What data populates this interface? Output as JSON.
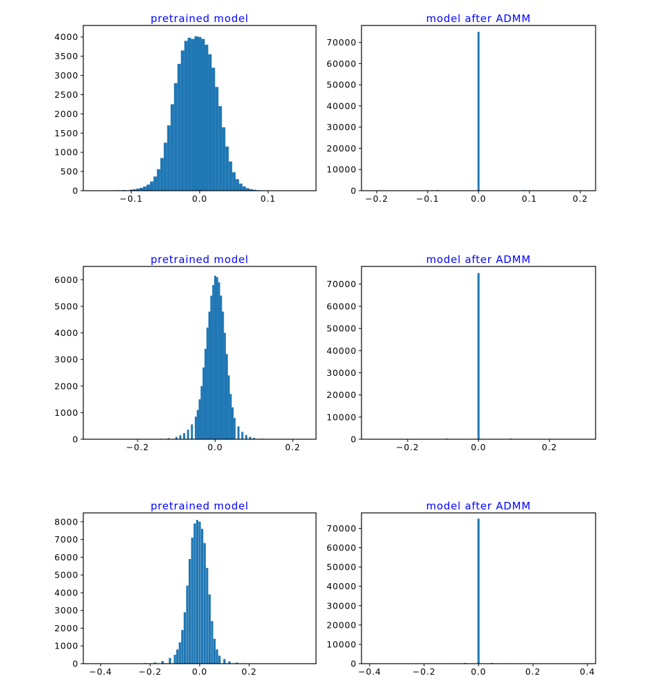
{
  "figure": {
    "title_color": "#0000ff",
    "bar_color": "#1f77b4"
  },
  "chart_data": [
    {
      "type": "bar",
      "title": "pretrained model",
      "xlabel": "",
      "ylabel": "",
      "xlim": [
        -0.17,
        0.17
      ],
      "ylim": [
        0,
        4300
      ],
      "xticks": [
        -0.1,
        0.0,
        0.1
      ],
      "xtick_labels": [
        "−0.1",
        "0.0",
        "0.1"
      ],
      "yticks": [
        0,
        500,
        1000,
        1500,
        2000,
        2500,
        3000,
        3500,
        4000
      ],
      "ytick_labels": [
        "0",
        "500",
        "1000",
        "1500",
        "2000",
        "2500",
        "3000",
        "3500",
        "4000"
      ],
      "bins": {
        "x": [
          -0.15,
          -0.14,
          -0.13,
          -0.12,
          -0.11,
          -0.1,
          -0.095,
          -0.09,
          -0.085,
          -0.08,
          -0.075,
          -0.07,
          -0.065,
          -0.06,
          -0.055,
          -0.05,
          -0.045,
          -0.04,
          -0.035,
          -0.03,
          -0.025,
          -0.02,
          -0.015,
          -0.01,
          -0.005,
          0.0,
          0.005,
          0.01,
          0.015,
          0.02,
          0.025,
          0.03,
          0.035,
          0.04,
          0.045,
          0.05,
          0.055,
          0.06,
          0.065,
          0.07,
          0.075,
          0.08,
          0.085,
          0.09,
          0.1,
          0.11,
          0.12
        ],
        "values": [
          3,
          5,
          8,
          12,
          18,
          28,
          38,
          55,
          75,
          110,
          160,
          240,
          370,
          560,
          850,
          1250,
          1700,
          2250,
          2800,
          3300,
          3650,
          3900,
          3980,
          3950,
          4020,
          4000,
          3950,
          3800,
          3550,
          3200,
          2700,
          2200,
          1650,
          1150,
          760,
          480,
          300,
          185,
          110,
          65,
          40,
          25,
          15,
          10,
          5,
          3,
          2
        ]
      },
      "bin_width": 0.005
    },
    {
      "type": "bar",
      "title": "model after ADMM",
      "xlabel": "",
      "ylabel": "",
      "xlim": [
        -0.23,
        0.23
      ],
      "ylim": [
        0,
        78000
      ],
      "xticks": [
        -0.2,
        -0.1,
        0.0,
        0.1,
        0.2
      ],
      "xtick_labels": [
        "−0.2",
        "−0.1",
        "0.0",
        "0.1",
        "0.2"
      ],
      "yticks": [
        0,
        10000,
        20000,
        30000,
        40000,
        50000,
        60000,
        70000
      ],
      "ytick_labels": [
        "0",
        "10000",
        "20000",
        "30000",
        "40000",
        "50000",
        "60000",
        "70000"
      ],
      "bins": {
        "x": [
          -0.08,
          0.0,
          0.09
        ],
        "values": [
          300,
          75000,
          300
        ]
      },
      "bin_width": 0.004
    },
    {
      "type": "bar",
      "title": "pretrained model",
      "xlabel": "",
      "ylabel": "",
      "xlim": [
        -0.34,
        0.26
      ],
      "ylim": [
        0,
        6500
      ],
      "xticks": [
        -0.2,
        0.0,
        0.2
      ],
      "xtick_labels": [
        "−0.2",
        "0.0",
        "0.2"
      ],
      "yticks": [
        0,
        1000,
        2000,
        3000,
        4000,
        5000,
        6000
      ],
      "ytick_labels": [
        "0",
        "1000",
        "2000",
        "3000",
        "4000",
        "5000",
        "6000"
      ],
      "bins": {
        "x": [
          -0.14,
          -0.12,
          -0.1,
          -0.09,
          -0.08,
          -0.07,
          -0.06,
          -0.05,
          -0.045,
          -0.04,
          -0.035,
          -0.03,
          -0.025,
          -0.02,
          -0.015,
          -0.01,
          -0.005,
          0.0,
          0.005,
          0.01,
          0.015,
          0.02,
          0.025,
          0.03,
          0.035,
          0.04,
          0.045,
          0.05,
          0.06,
          0.07,
          0.08,
          0.09,
          0.1,
          0.12,
          0.14
        ],
        "values": [
          20,
          40,
          90,
          150,
          230,
          360,
          560,
          850,
          1100,
          1500,
          2000,
          2700,
          3400,
          4200,
          4800,
          5400,
          5800,
          6150,
          6100,
          5900,
          5400,
          4800,
          4000,
          3200,
          2400,
          1700,
          1200,
          800,
          480,
          280,
          160,
          90,
          50,
          20,
          8
        ]
      },
      "bin_width": 0.0052
    },
    {
      "type": "bar",
      "title": "model after ADMM",
      "xlabel": "",
      "ylabel": "",
      "xlim": [
        -0.33,
        0.33
      ],
      "ylim": [
        0,
        78000
      ],
      "xticks": [
        -0.2,
        0.0,
        0.2
      ],
      "xtick_labels": [
        "−0.2",
        "0.0",
        "0.2"
      ],
      "yticks": [
        0,
        10000,
        20000,
        30000,
        40000,
        50000,
        60000,
        70000
      ],
      "ytick_labels": [
        "0",
        "10000",
        "20000",
        "30000",
        "40000",
        "50000",
        "60000",
        "70000"
      ],
      "bins": {
        "x": [
          -0.09,
          0.0,
          0.09
        ],
        "values": [
          300,
          75000,
          300
        ]
      },
      "bin_width": 0.006
    },
    {
      "type": "bar",
      "title": "pretrained model",
      "xlabel": "",
      "ylabel": "",
      "xlim": [
        -0.47,
        0.47
      ],
      "ylim": [
        0,
        8500
      ],
      "xticks": [
        -0.4,
        -0.2,
        0.0,
        0.2
      ],
      "xtick_labels": [
        "−0.4",
        "−0.2",
        "0.0",
        "0.2"
      ],
      "yticks": [
        0,
        1000,
        2000,
        3000,
        4000,
        5000,
        6000,
        7000,
        8000
      ],
      "ytick_labels": [
        "0",
        "1000",
        "2000",
        "3000",
        "4000",
        "5000",
        "6000",
        "7000",
        "8000"
      ],
      "bins": {
        "x": [
          -0.22,
          -0.18,
          -0.15,
          -0.12,
          -0.1,
          -0.09,
          -0.08,
          -0.07,
          -0.06,
          -0.05,
          -0.04,
          -0.03,
          -0.02,
          -0.01,
          0.0,
          0.01,
          0.02,
          0.03,
          0.04,
          0.05,
          0.06,
          0.07,
          0.08,
          0.1,
          0.12,
          0.15,
          0.18,
          0.22
        ],
        "values": [
          30,
          70,
          150,
          320,
          500,
          800,
          1200,
          1900,
          2900,
          4400,
          5900,
          7100,
          7900,
          8100,
          8000,
          7600,
          6800,
          5400,
          3900,
          2400,
          1400,
          800,
          450,
          260,
          130,
          60,
          25,
          10
        ]
      },
      "bin_width": 0.0092
    },
    {
      "type": "bar",
      "title": "model after ADMM",
      "xlabel": "",
      "ylabel": "",
      "xlim": [
        -0.43,
        0.43
      ],
      "ylim": [
        0,
        78000
      ],
      "xticks": [
        -0.4,
        -0.2,
        0.0,
        0.2,
        0.4
      ],
      "xtick_labels": [
        "−0.4",
        "−0.2",
        "0.0",
        "0.2",
        "0.4"
      ],
      "yticks": [
        0,
        10000,
        20000,
        30000,
        40000,
        50000,
        60000,
        70000
      ],
      "ytick_labels": [
        "0",
        "10000",
        "20000",
        "30000",
        "40000",
        "50000",
        "60000",
        "70000"
      ],
      "bins": {
        "x": [
          -0.1,
          -0.05,
          0.0,
          0.05,
          0.1
        ],
        "values": [
          200,
          350,
          75000,
          350,
          200
        ]
      },
      "bin_width": 0.008
    }
  ]
}
